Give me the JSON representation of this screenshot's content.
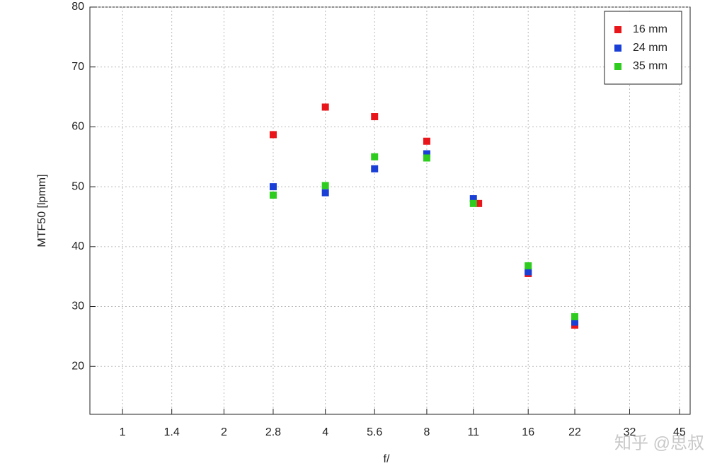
{
  "chart_data": {
    "type": "scatter",
    "x_label": "f/",
    "y_label": "MTF50 [lpmm]",
    "xlim": [
      0.8,
      48.4
    ],
    "ylim": [
      12,
      80
    ],
    "xscale": "log",
    "grid": true,
    "legend": "top-right",
    "xticks": [
      1,
      1.4,
      2,
      2.8,
      4,
      5.6,
      8,
      11,
      16,
      22,
      32,
      45
    ],
    "yticks": [
      20,
      30,
      40,
      50,
      60,
      70,
      80
    ],
    "series": [
      {
        "name": "16 mm",
        "color": "#e8161a",
        "x": [
          2.8,
          4,
          5.6,
          8,
          11.4,
          16,
          22
        ],
        "values": [
          58.7,
          63.3,
          61.7,
          57.6,
          47.2,
          35.5,
          26.9
        ]
      },
      {
        "name": "24 mm",
        "color": "#1a3fd6",
        "x": [
          2.8,
          4,
          5.6,
          8,
          11,
          16,
          22
        ],
        "values": [
          50,
          49,
          53,
          55.5,
          48,
          35.8,
          27.4
        ]
      },
      {
        "name": "35 mm",
        "color": "#2ecc1e",
        "x": [
          2.8,
          4,
          5.6,
          8,
          11,
          16,
          22
        ],
        "values": [
          48.6,
          50.2,
          55,
          54.8,
          47.2,
          36.8,
          28.3
        ]
      }
    ],
    "watermark": "知乎 @思叔"
  }
}
